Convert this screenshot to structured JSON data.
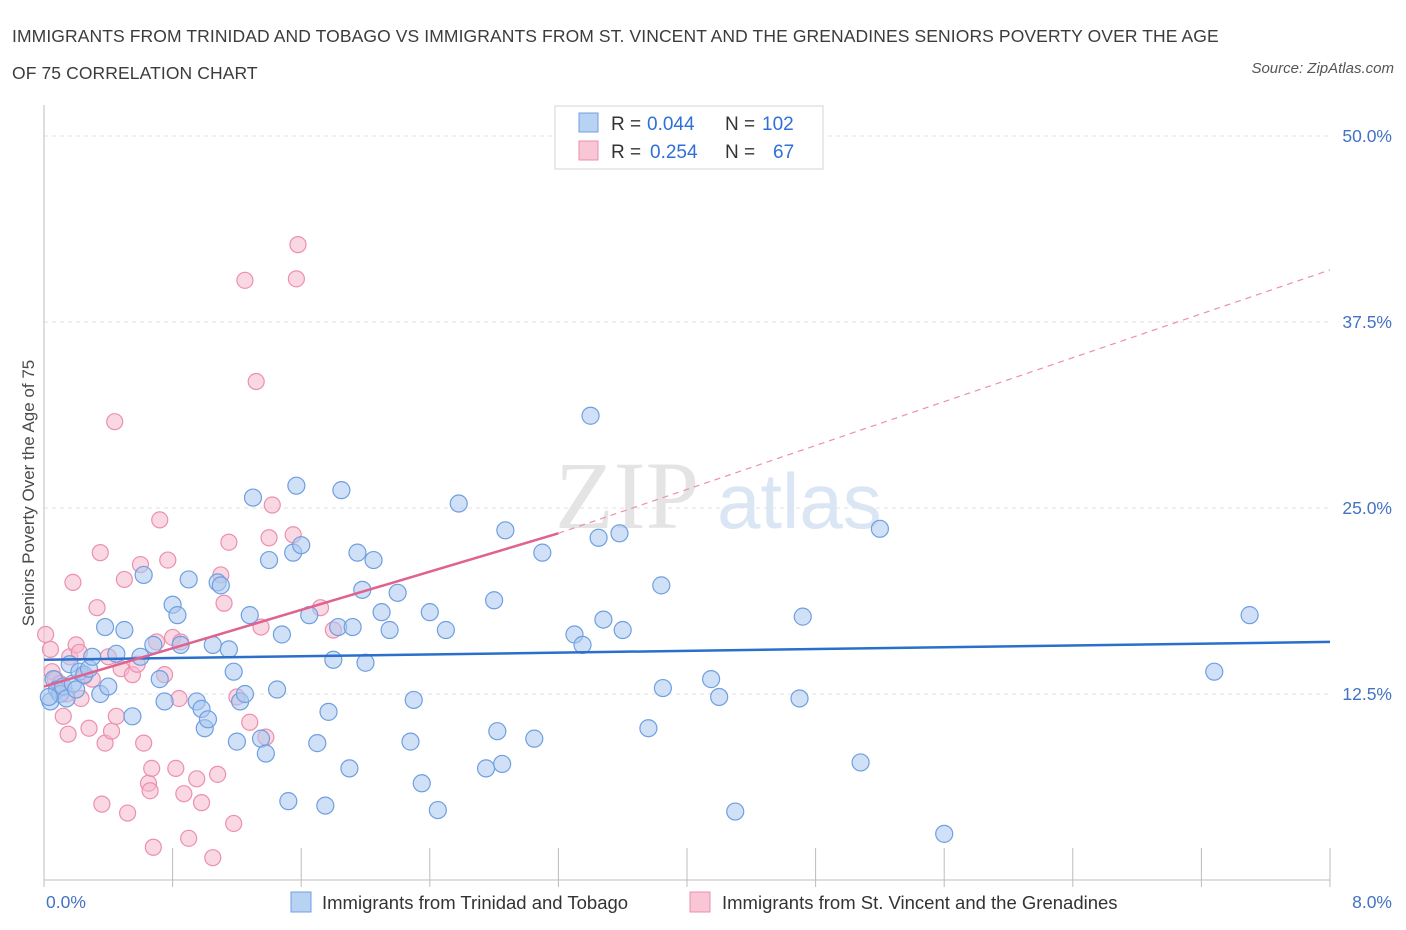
{
  "title": "IMMIGRANTS FROM TRINIDAD AND TOBAGO VS IMMIGRANTS FROM ST. VINCENT AND THE GRENADINES SENIORS POVERTY OVER THE AGE OF 75 CORRELATION CHART",
  "source": "Source: ZipAtlas.com",
  "watermark": {
    "zip": "ZIP",
    "atlas": "atlas"
  },
  "colors": {
    "blue_fill": "#a9c8f0",
    "blue_stroke": "#6f9fe0",
    "blue_line": "#2a6fcc",
    "pink_fill": "#f6b8cc",
    "pink_stroke": "#ec8fae",
    "pink_line": "#e0628e",
    "tick_text": "#4472c4",
    "grid": "#e2e2e2"
  },
  "legend": {
    "rows": [
      {
        "r_label": "R =",
        "r_value": "0.044",
        "n_label": "N =",
        "n_value": "102"
      },
      {
        "r_label": "R =",
        "r_value": "0.254",
        "n_label": "N =",
        "n_value": "67"
      }
    ]
  },
  "chart_data": {
    "type": "scatter",
    "title": "IMMIGRANTS FROM TRINIDAD AND TOBAGO VS IMMIGRANTS FROM ST. VINCENT AND THE GRENADINES SENIORS POVERTY OVER THE AGE OF 75 CORRELATION CHART",
    "xlabel": "",
    "ylabel": "Seniors Poverty Over the Age of 75",
    "xlim": [
      0,
      8
    ],
    "ylim": [
      0,
      50
    ],
    "x_tick_labels": [
      "0.0%",
      "8.0%"
    ],
    "y_ticks": [
      12.5,
      25.0,
      37.5,
      50.0
    ],
    "y_tick_labels": [
      "12.5%",
      "25.0%",
      "37.5%",
      "50.0%"
    ],
    "grid": true,
    "legend_position": "bottom",
    "series": [
      {
        "name": "Immigrants from Trinidad and Tobago",
        "R": 0.044,
        "N": 102,
        "trend": {
          "x": [
            0,
            8
          ],
          "y": [
            14.8,
            16.0
          ],
          "style": "solid"
        },
        "points": [
          [
            0.04,
            12.0
          ],
          [
            0.06,
            13.5
          ],
          [
            0.08,
            12.8
          ],
          [
            0.1,
            12.5
          ],
          [
            0.12,
            13.0
          ],
          [
            0.14,
            12.2
          ],
          [
            0.16,
            14.5
          ],
          [
            0.18,
            13.2
          ],
          [
            0.2,
            12.8
          ],
          [
            0.22,
            14.0
          ],
          [
            0.25,
            13.8
          ],
          [
            0.28,
            14.2
          ],
          [
            0.3,
            15.0
          ],
          [
            0.35,
            12.5
          ],
          [
            0.38,
            17.0
          ],
          [
            0.4,
            13.0
          ],
          [
            0.45,
            15.2
          ],
          [
            0.5,
            16.8
          ],
          [
            0.55,
            11.0
          ],
          [
            0.6,
            15.0
          ],
          [
            0.62,
            20.5
          ],
          [
            0.68,
            15.8
          ],
          [
            0.72,
            13.5
          ],
          [
            0.75,
            12.0
          ],
          [
            0.8,
            18.5
          ],
          [
            0.83,
            17.8
          ],
          [
            0.85,
            15.8
          ],
          [
            0.9,
            20.2
          ],
          [
            0.95,
            12.0
          ],
          [
            0.98,
            11.5
          ],
          [
            1.0,
            10.2
          ],
          [
            1.02,
            10.8
          ],
          [
            1.05,
            15.8
          ],
          [
            1.08,
            20.0
          ],
          [
            1.1,
            19.8
          ],
          [
            1.15,
            15.5
          ],
          [
            1.18,
            14.0
          ],
          [
            1.2,
            9.3
          ],
          [
            1.22,
            12.0
          ],
          [
            1.25,
            12.5
          ],
          [
            1.28,
            17.8
          ],
          [
            1.3,
            25.7
          ],
          [
            1.35,
            9.5
          ],
          [
            1.38,
            8.5
          ],
          [
            1.4,
            21.5
          ],
          [
            1.45,
            12.8
          ],
          [
            1.48,
            16.5
          ],
          [
            1.52,
            5.3
          ],
          [
            1.55,
            22.0
          ],
          [
            1.57,
            26.5
          ],
          [
            1.6,
            22.5
          ],
          [
            1.65,
            17.8
          ],
          [
            1.7,
            9.2
          ],
          [
            1.75,
            5.0
          ],
          [
            1.77,
            11.3
          ],
          [
            1.8,
            14.8
          ],
          [
            1.83,
            17.0
          ],
          [
            1.85,
            26.2
          ],
          [
            1.9,
            7.5
          ],
          [
            1.92,
            17.0
          ],
          [
            1.95,
            22.0
          ],
          [
            1.98,
            19.5
          ],
          [
            2.0,
            14.6
          ],
          [
            2.05,
            21.5
          ],
          [
            2.1,
            18.0
          ],
          [
            2.15,
            16.8
          ],
          [
            2.2,
            19.3
          ],
          [
            2.28,
            9.3
          ],
          [
            2.3,
            12.1
          ],
          [
            2.35,
            6.5
          ],
          [
            2.4,
            18.0
          ],
          [
            2.45,
            4.7
          ],
          [
            2.5,
            16.8
          ],
          [
            2.58,
            25.3
          ],
          [
            2.75,
            7.5
          ],
          [
            2.8,
            18.8
          ],
          [
            2.82,
            10.0
          ],
          [
            2.85,
            7.8
          ],
          [
            2.87,
            23.5
          ],
          [
            3.05,
            9.5
          ],
          [
            3.1,
            22.0
          ],
          [
            3.3,
            16.5
          ],
          [
            3.35,
            15.8
          ],
          [
            3.4,
            31.2
          ],
          [
            3.45,
            23.0
          ],
          [
            3.48,
            17.5
          ],
          [
            3.58,
            23.3
          ],
          [
            3.6,
            16.8
          ],
          [
            3.76,
            10.2
          ],
          [
            3.84,
            19.8
          ],
          [
            3.85,
            12.9
          ],
          [
            4.15,
            13.5
          ],
          [
            4.2,
            12.3
          ],
          [
            4.3,
            4.6
          ],
          [
            4.7,
            12.2
          ],
          [
            4.72,
            17.7
          ],
          [
            5.08,
            7.9
          ],
          [
            5.2,
            23.6
          ],
          [
            5.6,
            3.1
          ],
          [
            7.28,
            14.0
          ],
          [
            7.5,
            17.8
          ],
          [
            0.03,
            12.3
          ]
        ]
      },
      {
        "name": "Immigrants from St. Vincent and the Grenadines",
        "R": 0.254,
        "N": 67,
        "trend": {
          "x": [
            0,
            3.2
          ],
          "y": [
            13.0,
            23.3
          ],
          "style": "solid",
          "extension": {
            "x": [
              3.2,
              8
            ],
            "y": [
              23.3,
              41.0
            ],
            "style": "dashed"
          }
        },
        "points": [
          [
            0.01,
            16.5
          ],
          [
            0.04,
            15.5
          ],
          [
            0.05,
            14.0
          ],
          [
            0.07,
            13.5
          ],
          [
            0.08,
            12.8
          ],
          [
            0.1,
            13.2
          ],
          [
            0.12,
            11.0
          ],
          [
            0.14,
            12.5
          ],
          [
            0.15,
            9.8
          ],
          [
            0.16,
            15.0
          ],
          [
            0.18,
            20.0
          ],
          [
            0.2,
            15.8
          ],
          [
            0.22,
            15.3
          ],
          [
            0.23,
            12.2
          ],
          [
            0.25,
            13.7
          ],
          [
            0.28,
            10.2
          ],
          [
            0.3,
            13.5
          ],
          [
            0.33,
            18.3
          ],
          [
            0.35,
            22.0
          ],
          [
            0.36,
            5.1
          ],
          [
            0.38,
            9.2
          ],
          [
            0.4,
            15.0
          ],
          [
            0.42,
            10.0
          ],
          [
            0.44,
            30.8
          ],
          [
            0.45,
            11.0
          ],
          [
            0.48,
            14.2
          ],
          [
            0.5,
            20.2
          ],
          [
            0.52,
            4.5
          ],
          [
            0.55,
            13.8
          ],
          [
            0.58,
            14.5
          ],
          [
            0.6,
            21.2
          ],
          [
            0.62,
            9.2
          ],
          [
            0.65,
            6.5
          ],
          [
            0.66,
            6.0
          ],
          [
            0.67,
            7.5
          ],
          [
            0.68,
            2.2
          ],
          [
            0.7,
            16.0
          ],
          [
            0.72,
            24.2
          ],
          [
            0.75,
            13.8
          ],
          [
            0.77,
            21.5
          ],
          [
            0.8,
            16.3
          ],
          [
            0.82,
            7.5
          ],
          [
            0.84,
            12.2
          ],
          [
            0.85,
            16.0
          ],
          [
            0.87,
            5.8
          ],
          [
            0.9,
            2.8
          ],
          [
            0.95,
            6.8
          ],
          [
            0.98,
            5.2
          ],
          [
            1.05,
            1.5
          ],
          [
            1.08,
            7.1
          ],
          [
            1.1,
            20.5
          ],
          [
            1.12,
            18.6
          ],
          [
            1.15,
            22.7
          ],
          [
            1.18,
            3.8
          ],
          [
            1.2,
            12.3
          ],
          [
            1.25,
            40.3
          ],
          [
            1.28,
            10.6
          ],
          [
            1.32,
            33.5
          ],
          [
            1.35,
            17.0
          ],
          [
            1.38,
            9.6
          ],
          [
            1.4,
            23.0
          ],
          [
            1.42,
            25.2
          ],
          [
            1.55,
            23.2
          ],
          [
            1.57,
            40.4
          ],
          [
            1.58,
            42.7
          ],
          [
            1.72,
            18.3
          ],
          [
            1.8,
            16.8
          ]
        ]
      }
    ]
  },
  "bottom_legend": {
    "items": [
      {
        "label": "Immigrants from Trinidad and Tobago"
      },
      {
        "label": "Immigrants from St. Vincent and the Grenadines"
      }
    ]
  }
}
